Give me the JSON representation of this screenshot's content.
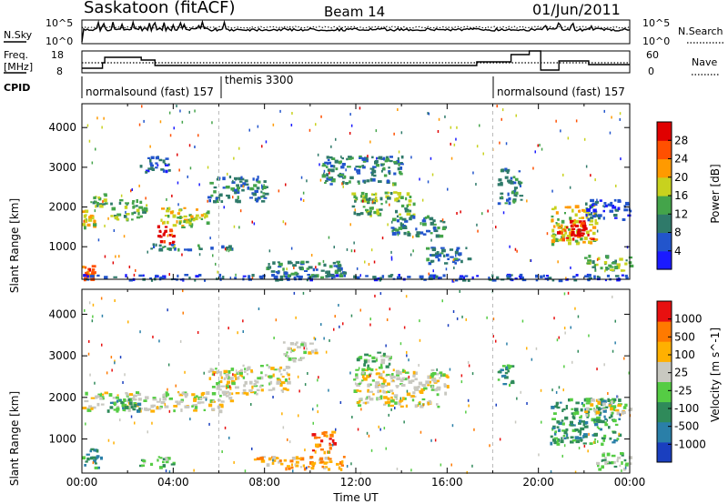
{
  "header": {
    "station": "Saskatoon (fitACF)",
    "beam": "Beam 14",
    "date": "01/Jun/2011"
  },
  "top_panels": {
    "nsky_label": "N.Sky",
    "nsky_ticks": [
      "10^5",
      "10^0"
    ],
    "nsearch_label": "N.Search",
    "freq_label_1": "Freq.",
    "freq_label_2": "[MHz]",
    "freq_ticks": [
      "18",
      "8"
    ],
    "nave_ticks": [
      "60",
      "0"
    ],
    "nave_label": "Nave",
    "cpid_label": "CPID",
    "cpid_segments": [
      {
        "label": "normalsound (fast) 157",
        "start_hour": 0
      },
      {
        "label": "themis 3300",
        "start_hour": 6
      },
      {
        "label": "normalsound (fast) 157",
        "start_hour": 18
      }
    ]
  },
  "chart_data": [
    {
      "type": "heatmap",
      "name": "power",
      "xlabel": "",
      "ylabel": "Slant Range [km]",
      "ylim": [
        180,
        4600
      ],
      "xlim_hours": [
        0,
        24
      ],
      "y_ticks": [
        "4000",
        "3000",
        "2000",
        "1000"
      ],
      "colorbar_label": "Power [dB]",
      "colorbar_ticks": [
        "28",
        "24",
        "20",
        "16",
        "12",
        "8",
        "4"
      ],
      "colorbar_colors": [
        "#1a1aff",
        "#2255cc",
        "#2f7a6a",
        "#44a44a",
        "#c8d21e",
        "#ff9a00",
        "#ff5000",
        "#e00000"
      ],
      "regions": [
        {
          "x0": 0.0,
          "x1": 0.5,
          "y0": 1500,
          "y1": 1950,
          "level": 4
        },
        {
          "x0": 0.3,
          "x1": 1.0,
          "y0": 2050,
          "y1": 2350,
          "level": 3
        },
        {
          "x0": 0.0,
          "x1": 0.5,
          "y0": 200,
          "y1": 550,
          "level": 6
        },
        {
          "x0": 1.2,
          "x1": 2.8,
          "y0": 1700,
          "y1": 2200,
          "level": 3
        },
        {
          "x0": 3.3,
          "x1": 4.0,
          "y0": 1100,
          "y1": 1600,
          "level": 7
        },
        {
          "x0": 3.4,
          "x1": 5.5,
          "y0": 1500,
          "y1": 2000,
          "level": 4
        },
        {
          "x0": 3.0,
          "x1": 6.5,
          "y0": 950,
          "y1": 1100,
          "level": 2
        },
        {
          "x0": 2.5,
          "x1": 3.8,
          "y0": 2900,
          "y1": 3300,
          "level": 1
        },
        {
          "x0": 5.5,
          "x1": 8.0,
          "y0": 2150,
          "y1": 2800,
          "level": 2
        },
        {
          "x0": 0.0,
          "x1": 24.0,
          "y0": 180,
          "y1": 320,
          "level": 1
        },
        {
          "x0": 8.0,
          "x1": 11.5,
          "y0": 250,
          "y1": 650,
          "level": 2
        },
        {
          "x0": 10.5,
          "x1": 14.0,
          "y0": 2600,
          "y1": 3300,
          "level": 2
        },
        {
          "x0": 11.8,
          "x1": 14.5,
          "y0": 1800,
          "y1": 2400,
          "level": 3
        },
        {
          "x0": 13.5,
          "x1": 16.0,
          "y0": 1300,
          "y1": 1800,
          "level": 2
        },
        {
          "x0": 15.0,
          "x1": 17.0,
          "y0": 600,
          "y1": 1000,
          "level": 2
        },
        {
          "x0": 20.5,
          "x1": 22.5,
          "y0": 1100,
          "y1": 2100,
          "level": 4
        },
        {
          "x0": 20.8,
          "x1": 22.3,
          "y0": 1200,
          "y1": 1700,
          "level": 7
        },
        {
          "x0": 22.0,
          "x1": 24.0,
          "y0": 1700,
          "y1": 2200,
          "level": 1
        },
        {
          "x0": 22.0,
          "x1": 24.0,
          "y0": 400,
          "y1": 800,
          "level": 3
        },
        {
          "x0": 18.2,
          "x1": 19.2,
          "y0": 2100,
          "y1": 3000,
          "level": 2
        }
      ]
    },
    {
      "type": "heatmap",
      "name": "velocity",
      "xlabel": "Time UT",
      "ylabel": "Slant Range [km]",
      "ylim": [
        180,
        4600
      ],
      "xlim_hours": [
        0,
        24
      ],
      "x_ticks": [
        "00:00",
        "04:00",
        "08:00",
        "12:00",
        "16:00",
        "20:00",
        "00:00"
      ],
      "y_ticks": [
        "4000",
        "3000",
        "2000",
        "1000"
      ],
      "colorbar_label": "Velocity [m s^-1]",
      "colorbar_ticks": [
        "1000",
        "500",
        "100",
        "25",
        "-25",
        "-100",
        "-500",
        "-1000"
      ],
      "colorbar_colors": [
        "#1a3fbf",
        "#2a7fa8",
        "#2f8a5a",
        "#55cc44",
        "#c8c8c0",
        "#ffb000",
        "#ff7a00",
        "#e81010"
      ],
      "regions": [
        {
          "x0": 0.0,
          "x1": 6.5,
          "y0": 1700,
          "y1": 2150,
          "level": 4
        },
        {
          "x0": 1.0,
          "x1": 2.5,
          "y0": 1700,
          "y1": 2000,
          "level": 2
        },
        {
          "x0": 5.5,
          "x1": 9.0,
          "y0": 2100,
          "y1": 2800,
          "level": 4
        },
        {
          "x0": 7.5,
          "x1": 11.5,
          "y0": 300,
          "y1": 600,
          "level": 5
        },
        {
          "x0": 10.0,
          "x1": 11.0,
          "y0": 700,
          "y1": 1200,
          "level": 6
        },
        {
          "x0": 8.8,
          "x1": 10.2,
          "y0": 2900,
          "y1": 3350,
          "level": 4
        },
        {
          "x0": 11.8,
          "x1": 16.0,
          "y0": 1800,
          "y1": 2700,
          "level": 4
        },
        {
          "x0": 12.0,
          "x1": 13.5,
          "y0": 2700,
          "y1": 3100,
          "level": 3
        },
        {
          "x0": 0.0,
          "x1": 0.8,
          "y0": 300,
          "y1": 800,
          "level": 2
        },
        {
          "x0": 20.5,
          "x1": 23.5,
          "y0": 900,
          "y1": 2000,
          "level": 2
        },
        {
          "x0": 22.0,
          "x1": 24.0,
          "y0": 1600,
          "y1": 2000,
          "level": 4
        },
        {
          "x0": 22.5,
          "x1": 24.0,
          "y0": 300,
          "y1": 700,
          "level": 3
        },
        {
          "x0": 18.2,
          "x1": 18.8,
          "y0": 2300,
          "y1": 2800,
          "level": 2
        },
        {
          "x0": 2.5,
          "x1": 4.0,
          "y0": 350,
          "y1": 600,
          "level": 3
        }
      ]
    }
  ]
}
